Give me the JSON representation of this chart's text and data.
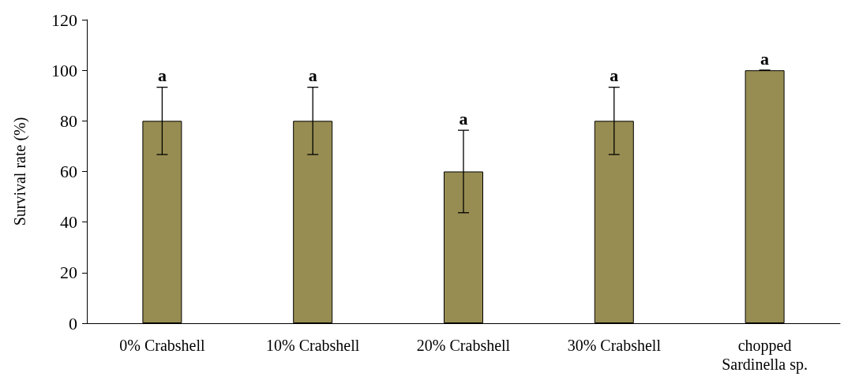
{
  "chart_data": {
    "type": "bar",
    "ylabel": "Survival rate (%)",
    "categories": [
      "0% Crabshell",
      "10% Crabshell",
      "20% Crabshell",
      "30% Crabshell",
      "chopped\nSardinella sp."
    ],
    "values": [
      80,
      80,
      60,
      80,
      100
    ],
    "errors": [
      13.3,
      13.3,
      16.3,
      13.3,
      0
    ],
    "color": "#978d52",
    "ylim": [
      0,
      120
    ],
    "yticks": [
      0,
      20,
      40,
      60,
      80,
      100,
      120
    ],
    "grid": false,
    "annotations": [
      "a",
      "a",
      "a",
      "a",
      "a"
    ]
  }
}
